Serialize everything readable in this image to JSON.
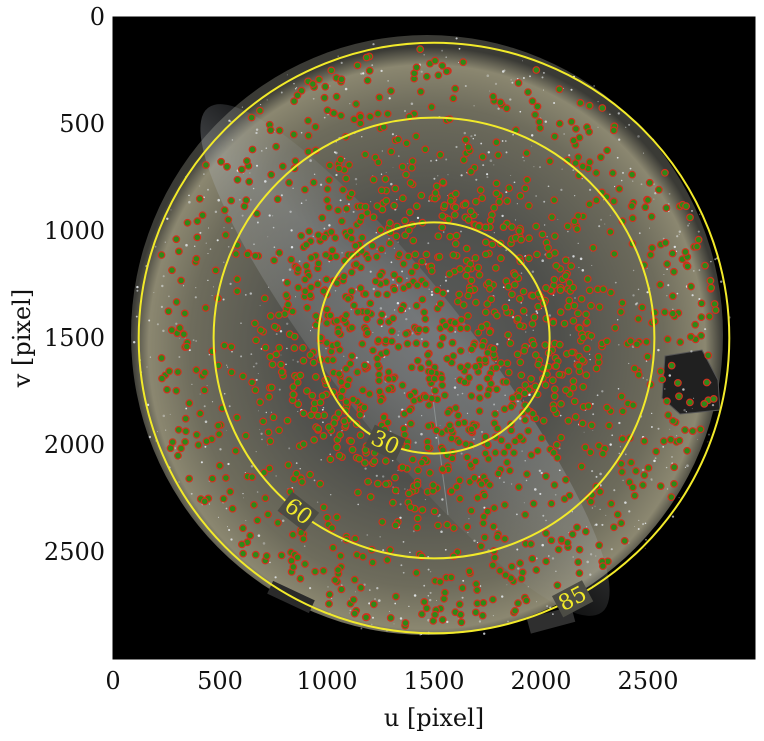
{
  "chart_data": {
    "type": "image",
    "xlabel": "u [pixel]",
    "ylabel": "v [pixel]",
    "xlim": [
      0,
      3000
    ],
    "ylim": [
      3000,
      0
    ],
    "x_ticks": [
      0,
      500,
      1000,
      1500,
      2000,
      2500
    ],
    "y_ticks": [
      0,
      500,
      1000,
      1500,
      2000,
      2500
    ],
    "image_center": [
      1500,
      1500
    ],
    "contours": [
      {
        "label": "30",
        "radius": 540
      },
      {
        "label": "60",
        "radius": 1030
      },
      {
        "label": "85",
        "radius": 1380
      }
    ],
    "colors": {
      "contour": "#f2ea2a",
      "marker_edge": "#d1301f",
      "marker_fill": "#2d8a18",
      "sky_background": "#000000"
    }
  }
}
